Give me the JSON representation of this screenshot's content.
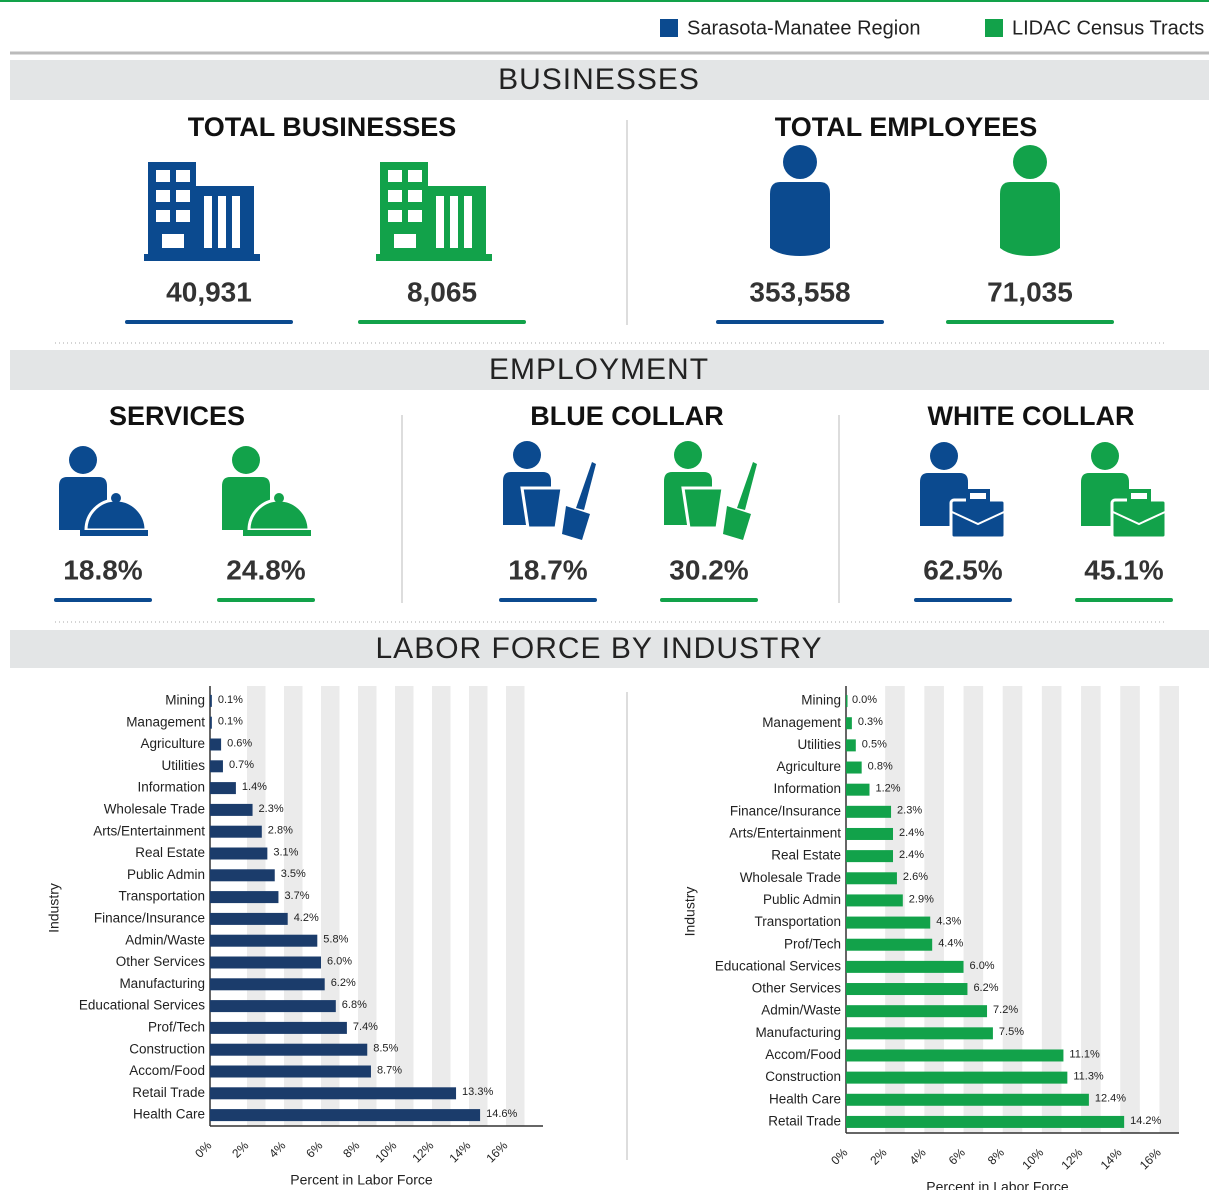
{
  "legend": [
    {
      "name": "Sarasota-Manatee Region",
      "color": "#0b4a8f"
    },
    {
      "name": "LIDAC Census Tracts",
      "color": "#12a24a"
    }
  ],
  "businesses": {
    "title": "BUSINESSES",
    "stats": [
      {
        "title": "TOTAL BUSINESSES",
        "values": [
          "40,931",
          "8,065"
        ]
      },
      {
        "title": "TOTAL EMPLOYEES",
        "values": [
          "353,558",
          "71,035"
        ]
      }
    ]
  },
  "employment": {
    "title": "EMPLOYMENT",
    "stats": [
      {
        "title": "SERVICES",
        "values": [
          "18.8%",
          "24.8%"
        ]
      },
      {
        "title": "BLUE COLLAR",
        "values": [
          "18.7%",
          "30.2%"
        ]
      },
      {
        "title": "WHITE COLLAR",
        "values": [
          "62.5%",
          "45.1%"
        ]
      }
    ]
  },
  "labor": {
    "title": "LABOR FORCE BY INDUSTRY"
  },
  "chart_data": [
    {
      "type": "bar",
      "orientation": "horizontal",
      "color": "#1b3c6b",
      "categories": [
        "Mining",
        "Management",
        "Agriculture",
        "Utilities",
        "Information",
        "Wholesale Trade",
        "Arts/Entertainment",
        "Real Estate",
        "Public Admin",
        "Transportation",
        "Finance/Insurance",
        "Admin/Waste",
        "Other Services",
        "Manufacturing",
        "Educational Services",
        "Prof/Tech",
        "Construction",
        "Accom/Food",
        "Retail Trade",
        "Health Care"
      ],
      "values": [
        0.1,
        0.1,
        0.6,
        0.7,
        1.4,
        2.3,
        2.8,
        3.1,
        3.5,
        3.7,
        4.2,
        5.8,
        6.0,
        6.2,
        6.8,
        7.4,
        8.5,
        8.7,
        13.3,
        14.6
      ],
      "value_labels": [
        "0.1%",
        "0.1%",
        "0.6%",
        "0.7%",
        "1.4%",
        "2.3%",
        "2.8%",
        "3.1%",
        "3.5%",
        "3.7%",
        "4.2%",
        "5.8%",
        "6.0%",
        "6.2%",
        "6.8%",
        "7.4%",
        "8.5%",
        "8.7%",
        "13.3%",
        "14.6%"
      ],
      "xlim": [
        0,
        18
      ],
      "xticks": [
        {
          "value": 0,
          "label": "0%"
        },
        {
          "value": 2,
          "label": "2%"
        },
        {
          "value": 4,
          "label": "4%"
        },
        {
          "value": 6,
          "label": "6%"
        },
        {
          "value": 8,
          "label": "8%"
        },
        {
          "value": 10,
          "label": "10%"
        },
        {
          "value": 12,
          "label": "12%"
        },
        {
          "value": 14,
          "label": "14%"
        },
        {
          "value": 16,
          "label": "16%"
        }
      ],
      "xlabel": "Percent in Labor Force",
      "ylabel": "Industry",
      "grid": true
    },
    {
      "type": "bar",
      "orientation": "horizontal",
      "color": "#12a24a",
      "categories": [
        "Mining",
        "Management",
        "Utilities",
        "Agriculture",
        "Information",
        "Finance/Insurance",
        "Arts/Entertainment",
        "Real Estate",
        "Wholesale Trade",
        "Public Admin",
        "Transportation",
        "Prof/Tech",
        "Educational Services",
        "Other Services",
        "Admin/Waste",
        "Manufacturing",
        "Accom/Food",
        "Construction",
        "Health Care",
        "Retail Trade"
      ],
      "values": [
        0.0,
        0.3,
        0.5,
        0.8,
        1.2,
        2.3,
        2.4,
        2.4,
        2.6,
        2.9,
        4.3,
        4.4,
        6.0,
        6.2,
        7.2,
        7.5,
        11.1,
        11.3,
        12.4,
        14.2
      ],
      "value_labels": [
        "0.0%",
        "0.3%",
        "0.5%",
        "0.8%",
        "1.2%",
        "2.3%",
        "2.4%",
        "2.4%",
        "2.6%",
        "2.9%",
        "4.3%",
        "4.4%",
        "6.0%",
        "6.2%",
        "7.2%",
        "7.5%",
        "11.1%",
        "11.3%",
        "12.4%",
        "14.2%"
      ],
      "xlim": [
        0,
        17
      ],
      "xticks": [
        {
          "value": 0,
          "label": "0%"
        },
        {
          "value": 2,
          "label": "2%"
        },
        {
          "value": 4,
          "label": "4%"
        },
        {
          "value": 6,
          "label": "6%"
        },
        {
          "value": 8,
          "label": "8%"
        },
        {
          "value": 10,
          "label": "10%"
        },
        {
          "value": 12,
          "label": "12%"
        },
        {
          "value": 14,
          "label": "14%"
        },
        {
          "value": 16,
          "label": "16%"
        }
      ],
      "xlabel": "Percent in Labor Force",
      "ylabel": "Industry",
      "grid": true
    }
  ]
}
